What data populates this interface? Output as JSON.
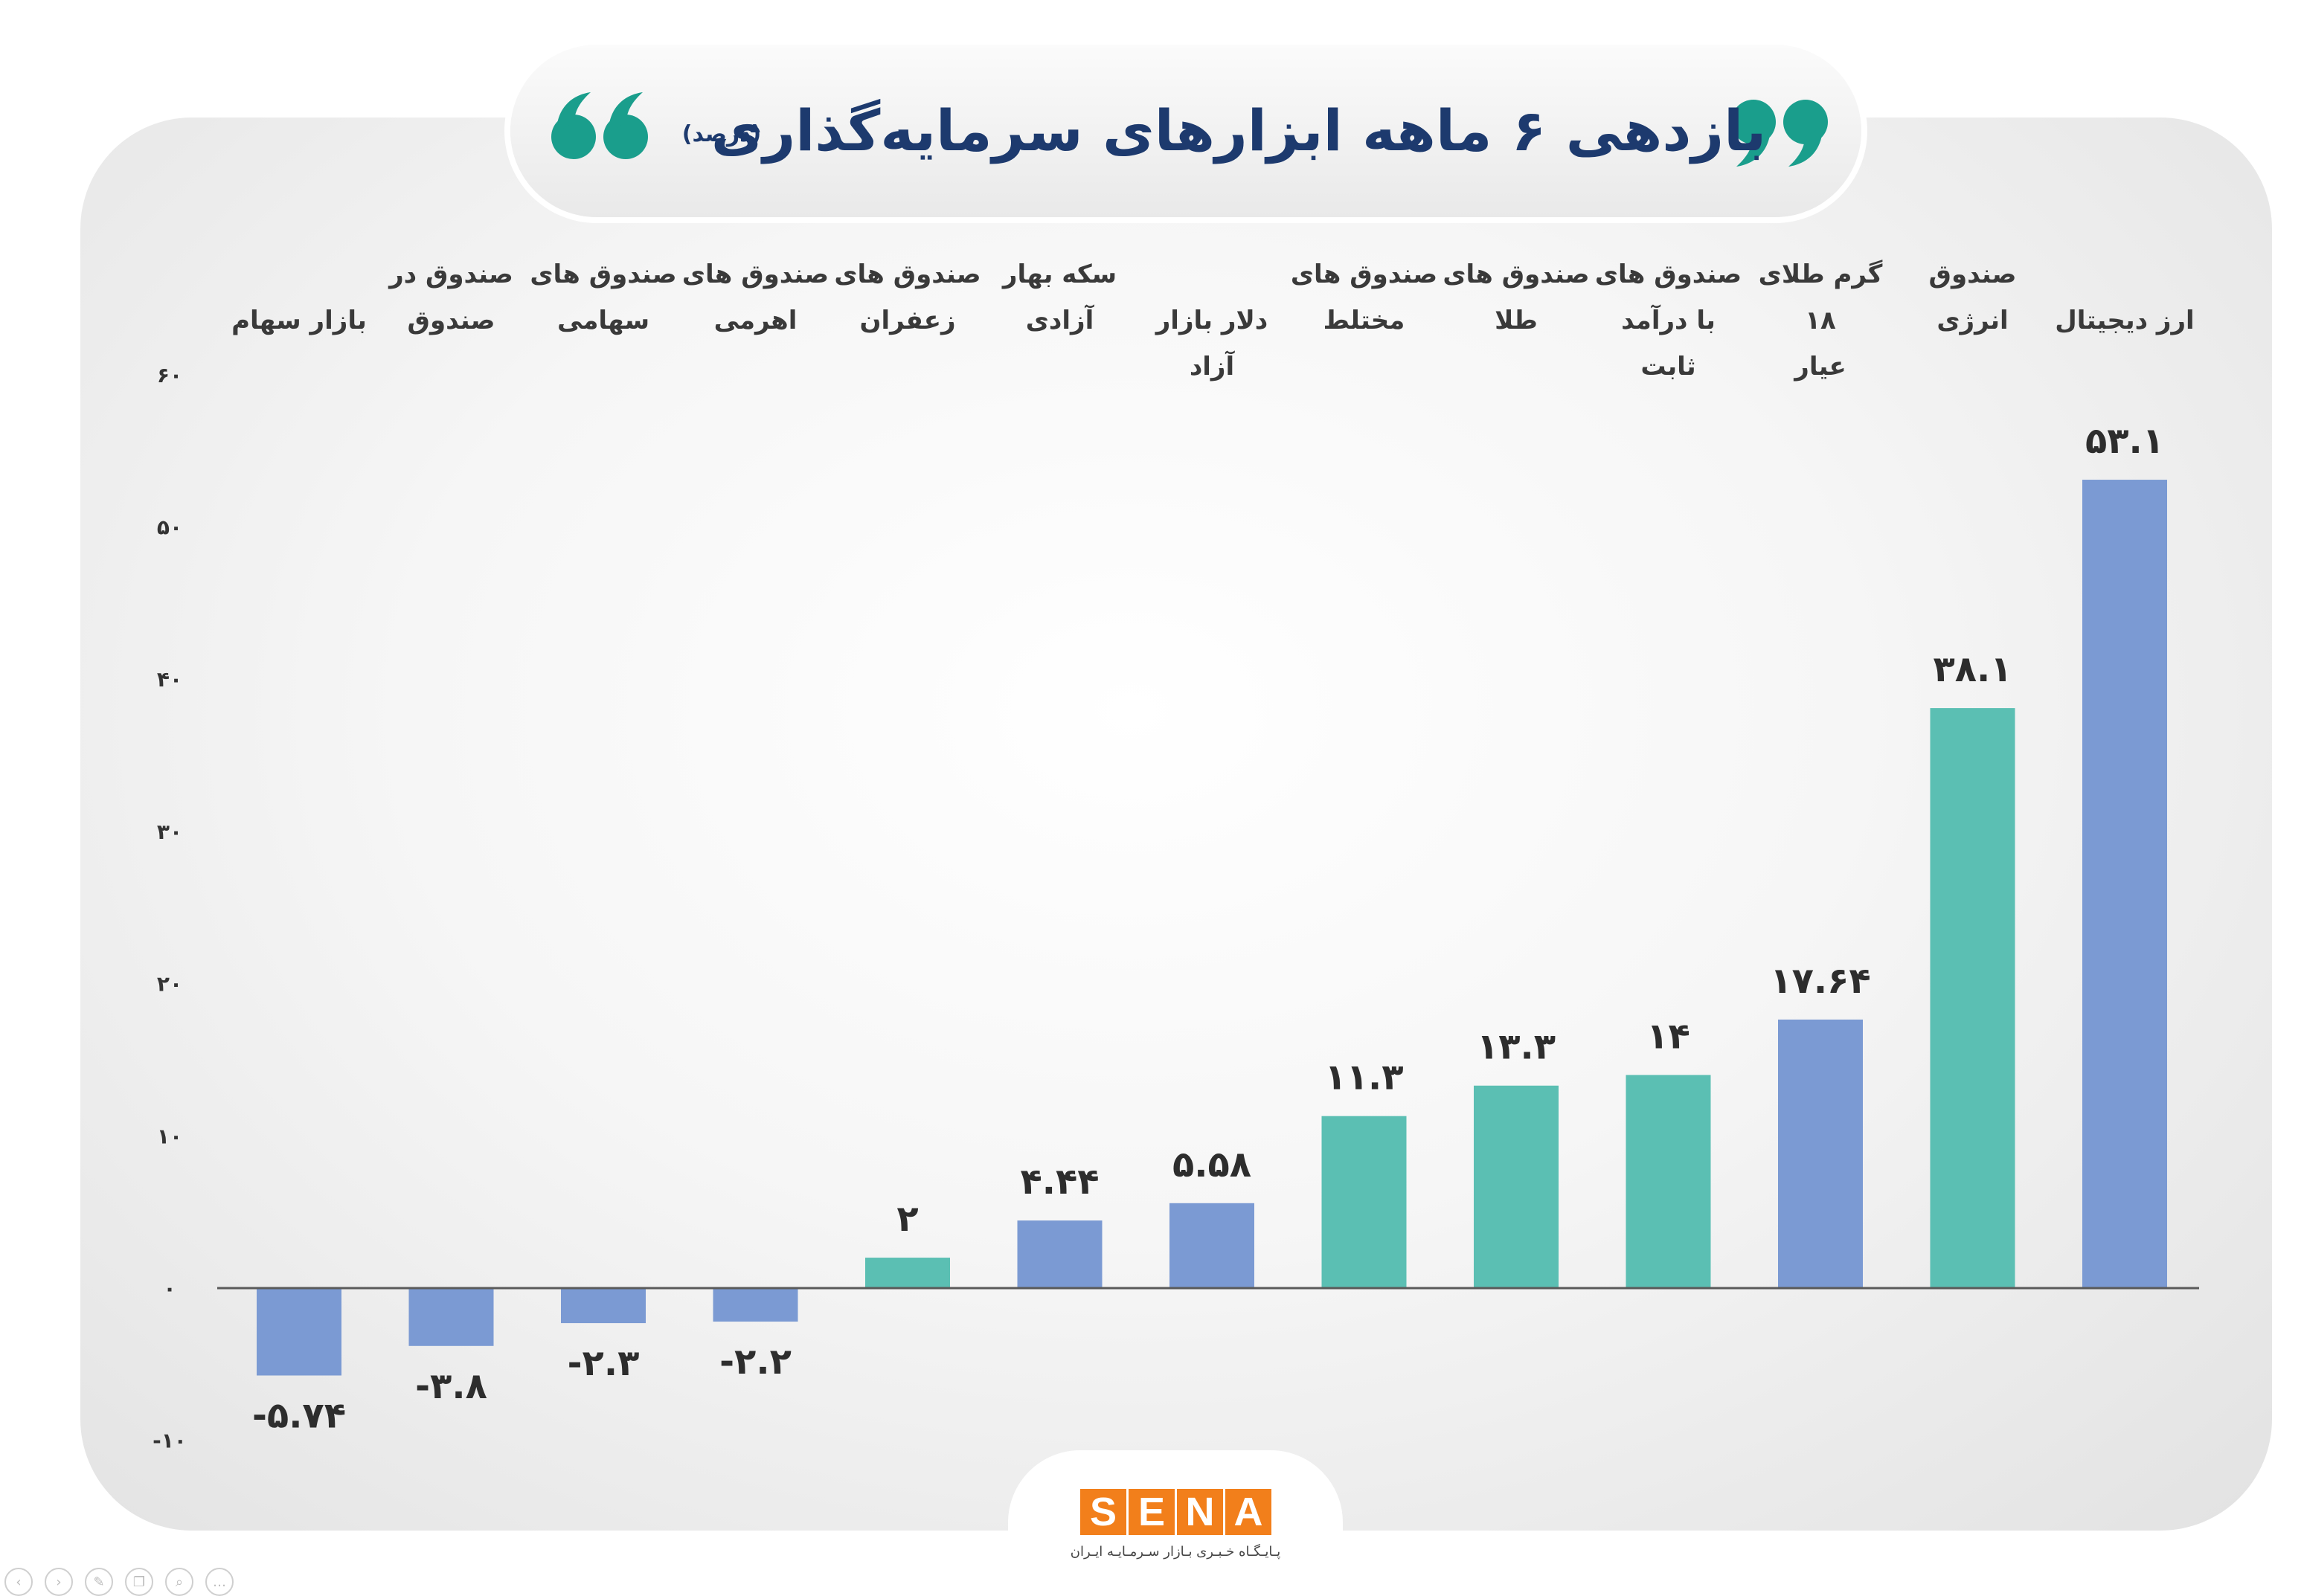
{
  "title": "بازدهی ۶ ماهه ابزارهای سرمایه‌گذاری",
  "title_unit": "(درصد)",
  "colors": {
    "blue": "#7b9ad3",
    "teal": "#5bbfb3",
    "title": "#1d3a6e",
    "quote": "#1a9e8c",
    "logo": "#f27f1b"
  },
  "icons": {
    "quote_open": "quote-open-icon",
    "quote_close": "quote-close-icon"
  },
  "logo": {
    "letters": [
      "S",
      "E",
      "N",
      "A"
    ],
    "subtitle": "پـایـگـاه خـبـری بـازار سـرمـایـه ایـران"
  },
  "chart_data": {
    "type": "bar",
    "title": "بازدهی ۶ ماهه ابزارهای سرمایه‌گذاری",
    "ylabel": "",
    "xlabel": "",
    "ylim": [
      -10,
      60
    ],
    "y_ticks": [
      {
        "value": -10,
        "label": "-۱۰"
      },
      {
        "value": 0,
        "label": "۰"
      },
      {
        "value": 10,
        "label": "۱۰"
      },
      {
        "value": 20,
        "label": "۲۰"
      },
      {
        "value": 30,
        "label": "۳۰"
      },
      {
        "value": 40,
        "label": "۴۰"
      },
      {
        "value": 50,
        "label": "۵۰"
      },
      {
        "value": 60,
        "label": "۶۰"
      }
    ],
    "grid": false,
    "bars": [
      {
        "category": [
          "ارز دیجیتال"
        ],
        "value": 53.1,
        "label": "۵۳.۱",
        "color": "blue"
      },
      {
        "category": [
          "صندوق",
          "انرژی"
        ],
        "value": 38.1,
        "label": "۳۸.۱",
        "color": "teal"
      },
      {
        "category": [
          "گرم طلای ۱۸",
          "عیار"
        ],
        "value": 17.64,
        "label": "۱۷.۶۴",
        "color": "blue"
      },
      {
        "category": [
          "صندوق های",
          "با درآمد ثابت"
        ],
        "value": 14,
        "label": "۱۴",
        "color": "teal"
      },
      {
        "category": [
          "صندوق های",
          "طلا"
        ],
        "value": 13.3,
        "label": "۱۳.۳",
        "color": "teal"
      },
      {
        "category": [
          "صندوق های",
          "مختلط"
        ],
        "value": 11.3,
        "label": "۱۱.۳",
        "color": "teal"
      },
      {
        "category": [
          "دلار بازار آزاد"
        ],
        "value": 5.58,
        "label": "۵.۵۸",
        "color": "blue"
      },
      {
        "category": [
          "سکه بهار",
          "آزادی"
        ],
        "value": 4.44,
        "label": "۴.۴۴",
        "color": "blue"
      },
      {
        "category": [
          "صندوق های",
          "زعفران"
        ],
        "value": 2,
        "label": "۲",
        "color": "teal"
      },
      {
        "category": [
          "صندوق های",
          "اهرمی"
        ],
        "value": -2.2,
        "label": "-۲.۲",
        "color": "blue"
      },
      {
        "category": [
          "صندوق های",
          "سهامی"
        ],
        "value": -2.3,
        "label": "-۲.۳",
        "color": "blue"
      },
      {
        "category": [
          "صندوق در",
          "صندوق"
        ],
        "value": -3.8,
        "label": "-۳.۸",
        "color": "blue"
      },
      {
        "category": [
          "بازار سهام"
        ],
        "value": -5.74,
        "label": "-۵.۷۴",
        "color": "blue"
      }
    ]
  }
}
